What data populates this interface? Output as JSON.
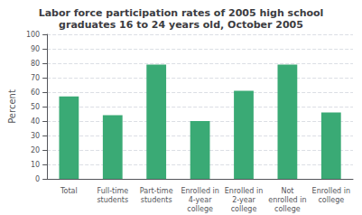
{
  "chart_data": {
    "type": "bar",
    "title": "Labor force participation rates of 2005 high school\ngraduates 16 to 24 years old, October 2005",
    "categories": [
      "Total",
      "Full-time\nstudents",
      "Part-time\nstudents",
      "Enrolled in\n4-year\ncollege",
      "Enrolled in\n2-year\ncollege",
      "Not\nenrolled in\ncollege",
      "Enrolled in\ncollege"
    ],
    "values": [
      57,
      44,
      79,
      40,
      61,
      79,
      46
    ],
    "color": "#3aaa75",
    "ylabel": "Percent",
    "ylim": [
      0,
      100
    ],
    "yticks": [
      0,
      10,
      20,
      30,
      40,
      50,
      60,
      70,
      80,
      90,
      100
    ],
    "grid": true
  }
}
